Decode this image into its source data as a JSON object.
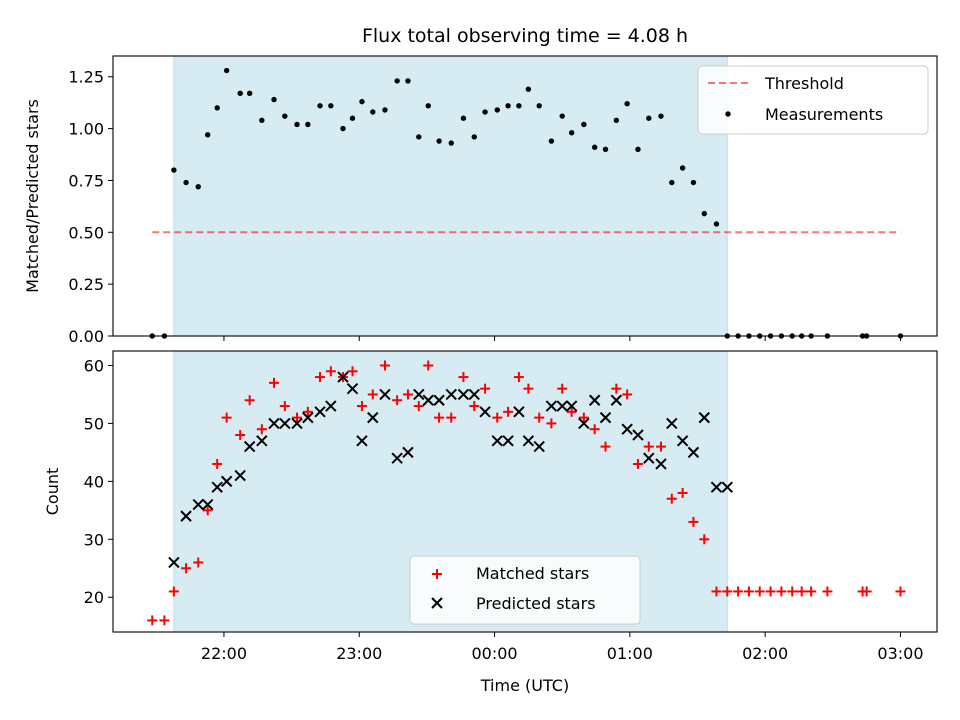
{
  "chart_data": [
    {
      "type": "scatter",
      "title": "Flux total observing time = 4.08 h",
      "xlabel": "",
      "ylabel": "Matched/Predicted stars",
      "ylim": [
        0,
        1.35
      ],
      "yticks": [
        "0.00",
        "0.25",
        "0.50",
        "0.75",
        "1.00",
        "1.25"
      ],
      "x_unit": "hours after 00:00 UTC (date-time axis)",
      "xlim": [
        -2.82,
        3.27
      ],
      "xticks": [
        "22:00",
        "23:00",
        "00:00",
        "01:00",
        "02:00",
        "03:00"
      ],
      "shaded_interval": [
        -2.37,
        1.72
      ],
      "shade_color": "#add8e6",
      "threshold": {
        "name": "Threshold",
        "value": 0.5,
        "x_range": [
          -2.53,
          3.0
        ],
        "color": "#ff0000",
        "style": "dashed"
      },
      "legend": {
        "position": "top-right",
        "entries": [
          "Threshold",
          "Measurements"
        ]
      },
      "series": [
        {
          "name": "Measurements",
          "color": "#000000",
          "marker": "dot",
          "x": [
            -2.53,
            -2.44,
            -2.37,
            -2.28,
            -2.19,
            -2.12,
            -2.05,
            -1.98,
            -1.88,
            -1.81,
            -1.72,
            -1.63,
            -1.55,
            -1.46,
            -1.38,
            -1.29,
            -1.21,
            -1.12,
            -1.05,
            -0.98,
            -0.9,
            -0.81,
            -0.72,
            -0.64,
            -0.56,
            -0.49,
            -0.41,
            -0.32,
            -0.23,
            -0.15,
            -0.07,
            0.02,
            0.1,
            0.18,
            0.25,
            0.33,
            0.42,
            0.5,
            0.57,
            0.66,
            0.74,
            0.82,
            0.9,
            0.98,
            1.06,
            1.14,
            1.23,
            1.31,
            1.39,
            1.47,
            1.55,
            1.64,
            1.72,
            1.8,
            1.88,
            1.96,
            2.04,
            2.12,
            2.2,
            2.27,
            2.34,
            2.46,
            2.72,
            2.75,
            3.0
          ],
          "y": [
            0.0,
            0.0,
            0.8,
            0.74,
            0.72,
            0.97,
            1.1,
            1.28,
            1.17,
            1.17,
            1.04,
            1.14,
            1.06,
            1.02,
            1.02,
            1.11,
            1.11,
            1.0,
            1.05,
            1.13,
            1.08,
            1.09,
            1.23,
            1.23,
            0.96,
            1.11,
            0.94,
            0.93,
            1.05,
            0.96,
            1.08,
            1.09,
            1.11,
            1.11,
            1.19,
            1.11,
            0.94,
            1.06,
            0.98,
            1.02,
            0.91,
            0.9,
            1.04,
            1.12,
            0.9,
            1.05,
            1.06,
            0.74,
            0.81,
            0.74,
            0.59,
            0.54,
            0.0,
            0.0,
            0.0,
            0.0,
            0.0,
            0.0,
            0.0,
            0.0,
            0.0,
            0.0,
            0.0,
            0.0,
            0.0
          ]
        }
      ]
    },
    {
      "type": "scatter",
      "title": "",
      "xlabel": "Time (UTC)",
      "ylabel": "Count",
      "ylim": [
        14,
        62.5
      ],
      "yticks": [
        "20",
        "30",
        "40",
        "50",
        "60"
      ],
      "x_unit": "hours after 00:00 UTC (date-time axis)",
      "xlim": [
        -2.82,
        3.27
      ],
      "xticks": [
        "22:00",
        "23:00",
        "00:00",
        "01:00",
        "02:00",
        "03:00"
      ],
      "shaded_interval": [
        -2.37,
        1.72
      ],
      "shade_color": "#add8e6",
      "legend": {
        "position": "bottom-center",
        "entries": [
          "Matched stars",
          "Predicted stars"
        ]
      },
      "series": [
        {
          "name": "Matched stars",
          "color": "#ff0000",
          "marker": "plus",
          "x": [
            -2.53,
            -2.44,
            -2.37,
            -2.28,
            -2.19,
            -2.12,
            -2.05,
            -1.98,
            -1.88,
            -1.81,
            -1.72,
            -1.63,
            -1.55,
            -1.46,
            -1.38,
            -1.29,
            -1.21,
            -1.12,
            -1.05,
            -0.98,
            -0.9,
            -0.81,
            -0.72,
            -0.64,
            -0.56,
            -0.49,
            -0.41,
            -0.32,
            -0.23,
            -0.15,
            -0.07,
            0.02,
            0.1,
            0.18,
            0.25,
            0.33,
            0.42,
            0.5,
            0.57,
            0.66,
            0.74,
            0.82,
            0.9,
            0.98,
            1.06,
            1.14,
            1.23,
            1.31,
            1.39,
            1.47,
            1.55,
            1.64,
            1.72,
            1.8,
            1.88,
            1.96,
            2.04,
            2.12,
            2.2,
            2.27,
            2.34,
            2.46,
            2.72,
            2.75,
            3.0
          ],
          "y": [
            16,
            16,
            21,
            25,
            26,
            35,
            43,
            51,
            48,
            54,
            49,
            57,
            53,
            51,
            52,
            58,
            59,
            58,
            59,
            53,
            55,
            60,
            54,
            55,
            53,
            60,
            51,
            51,
            58,
            53,
            56,
            51,
            52,
            58,
            56,
            51,
            50,
            56,
            52,
            51,
            49,
            46,
            56,
            55,
            43,
            46,
            46,
            37,
            38,
            33,
            30,
            21,
            21,
            21,
            21,
            21,
            21,
            21,
            21,
            21,
            21,
            21,
            21,
            21,
            21
          ]
        },
        {
          "name": "Predicted stars",
          "color": "#000000",
          "marker": "x",
          "x": [
            -2.37,
            -2.28,
            -2.19,
            -2.12,
            -2.05,
            -1.98,
            -1.88,
            -1.81,
            -1.72,
            -1.63,
            -1.55,
            -1.46,
            -1.38,
            -1.29,
            -1.21,
            -1.12,
            -1.05,
            -0.98,
            -0.9,
            -0.81,
            -0.72,
            -0.64,
            -0.56,
            -0.49,
            -0.41,
            -0.32,
            -0.23,
            -0.15,
            -0.07,
            0.02,
            0.1,
            0.18,
            0.25,
            0.33,
            0.42,
            0.5,
            0.57,
            0.66,
            0.74,
            0.82,
            0.9,
            0.98,
            1.06,
            1.14,
            1.23,
            1.31,
            1.39,
            1.47,
            1.55,
            1.64,
            1.72
          ],
          "y": [
            26,
            34,
            36,
            36,
            39,
            40,
            41,
            46,
            47,
            50,
            50,
            50,
            51,
            52,
            53,
            58,
            56,
            47,
            51,
            55,
            44,
            45,
            55,
            54,
            54,
            55,
            55,
            55,
            52,
            47,
            47,
            52,
            47,
            46,
            53,
            53,
            53,
            50,
            54,
            51,
            54,
            49,
            48,
            44,
            43,
            50,
            47,
            45,
            51,
            39,
            39
          ]
        }
      ]
    }
  ]
}
